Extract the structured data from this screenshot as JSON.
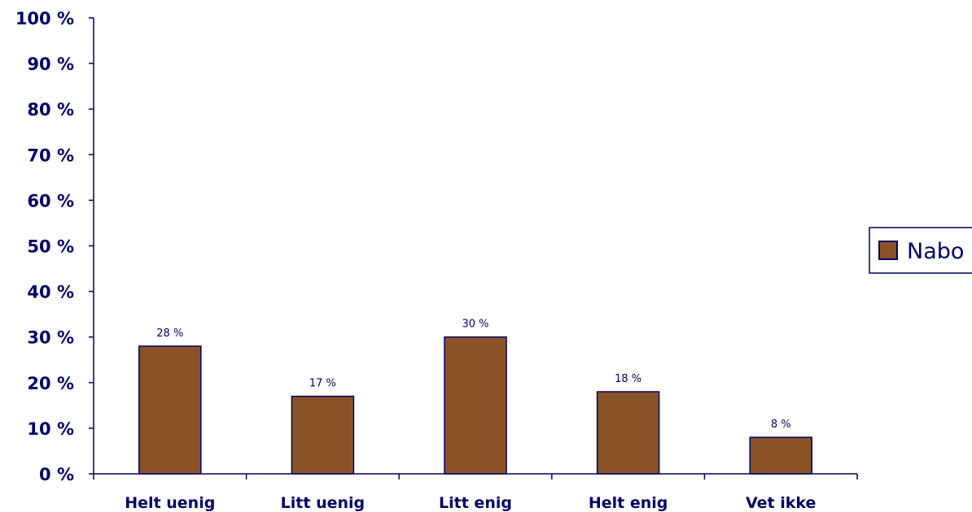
{
  "chart_data": {
    "type": "bar",
    "categories": [
      "Helt uenig",
      "Litt uenig",
      "Litt enig",
      "Helt enig",
      "Vet ikke"
    ],
    "series": [
      {
        "name": "Nabo",
        "values": [
          28,
          17,
          30,
          18,
          8
        ],
        "color": "#8B5325"
      }
    ],
    "data_labels": [
      "28 %",
      "17 %",
      "30 %",
      "18 %",
      "8 %"
    ],
    "y_ticks": [
      "0 %",
      "10 %",
      "20 %",
      "30 %",
      "40 %",
      "50 %",
      "60 %",
      "70 %",
      "80 %",
      "90 %",
      "100 %"
    ],
    "ylim": [
      0,
      100
    ],
    "y_step": 10,
    "grid": false,
    "legend_position": "right",
    "title": "",
    "xlabel": "",
    "ylabel": "",
    "text_color": "#000066",
    "axis_color": "#000066",
    "bar_border_color": "#000066"
  }
}
